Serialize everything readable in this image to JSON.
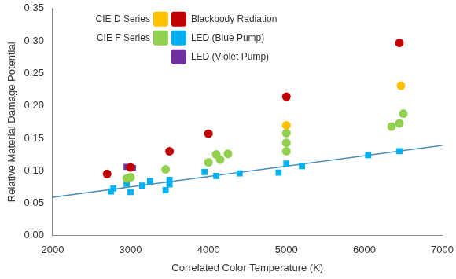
{
  "chart_data": {
    "type": "scatter",
    "x_label": "Correlated Color Temperature (K)",
    "y_label": "Relative Material Damage Potential",
    "xlim": [
      2000,
      7000
    ],
    "xticks": [
      2000,
      3000,
      4000,
      5000,
      6000,
      7000
    ],
    "ylim": [
      0,
      0.35
    ],
    "yticks": [
      {
        "value": 0,
        "label": "0.00"
      },
      {
        "value": 0.05,
        "label": "0.05"
      },
      {
        "value": 0.1,
        "label": "0.10"
      },
      {
        "value": 0.15,
        "label": "0.15"
      },
      {
        "value": 0.2,
        "label": "0.20"
      },
      {
        "value": 0.25,
        "label": "0.25"
      },
      {
        "value": 0.3,
        "label": "0.30"
      },
      {
        "value": 0.35,
        "label": "0.35"
      }
    ],
    "grid": false,
    "legend": "upper left",
    "series": [
      {
        "name": "CIE D Series",
        "color": "#ffc000",
        "marker": "circle",
        "x": [
          5000,
          6470
        ],
        "values": [
          0.17,
          0.231
        ]
      },
      {
        "name": "Blackbody Radiation",
        "color": "#c00000",
        "marker": "circle",
        "x": [
          2700,
          3000,
          3500,
          4000,
          5000,
          6450
        ],
        "values": [
          0.095,
          0.105,
          0.13,
          0.157,
          0.214,
          0.297
        ]
      },
      {
        "name": "CIE F Series",
        "color": "#92d050",
        "marker": "circle",
        "x": [
          2950,
          3000,
          3450,
          4000,
          4100,
          4150,
          4250,
          5000,
          5000,
          5000,
          6350,
          6450,
          6500
        ],
        "values": [
          0.088,
          0.09,
          0.102,
          0.113,
          0.125,
          0.117,
          0.126,
          0.13,
          0.143,
          0.158,
          0.168,
          0.173,
          0.188
        ]
      },
      {
        "name": "LED (Blue Pump)",
        "color": "#00b0f0",
        "marker": "square",
        "x": [
          2750,
          2780,
          2950,
          3000,
          3150,
          3250,
          3450,
          3500,
          3500,
          3950,
          4100,
          4400,
          4900,
          5000,
          5200,
          6050,
          6450
        ],
        "values": [
          0.068,
          0.073,
          0.08,
          0.067,
          0.077,
          0.084,
          0.07,
          0.079,
          0.086,
          0.098,
          0.092,
          0.096,
          0.097,
          0.111,
          0.107,
          0.124,
          0.13
        ]
      },
      {
        "name": "LED (Violet Pump)",
        "color": "#7030a0",
        "marker": "square",
        "x": [
          2950,
          3030
        ],
        "values": [
          0.106,
          0.104
        ]
      },
      {
        "type": "line",
        "color": "#4a90b8",
        "line_style": "solid",
        "x": [
          2000,
          7000
        ],
        "values": [
          0.059,
          0.139
        ]
      }
    ]
  }
}
